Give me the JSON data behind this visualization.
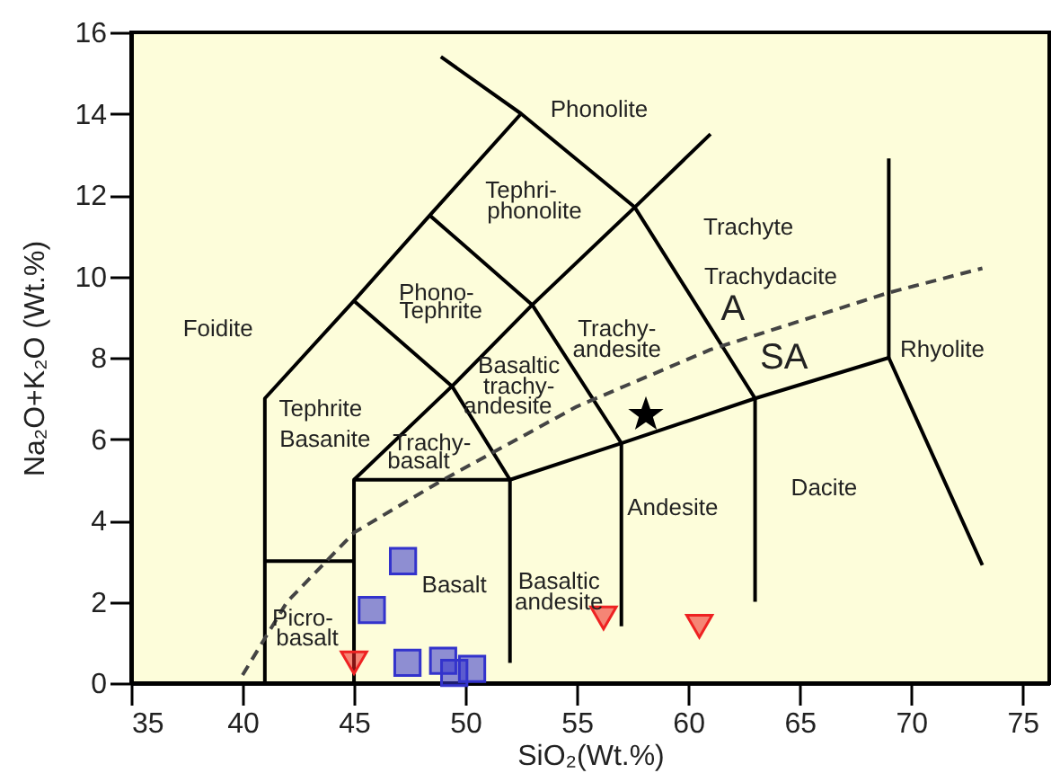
{
  "chart_data": {
    "type": "scatter",
    "xlabel": "SiO₂(Wt.%)",
    "ylabel": "Na₂O+K₂O (Wt.%)",
    "xlim": [
      35,
      76.2
    ],
    "ylim": [
      0,
      16
    ],
    "xticks": [
      35,
      40,
      45,
      50,
      55,
      60,
      65,
      70,
      75
    ],
    "yticks": [
      0,
      2,
      4,
      6,
      8,
      10,
      12,
      14,
      16
    ],
    "grid": false,
    "series": [
      {
        "type": "line",
        "color": "#000000",
        "line_style": "solid",
        "marker": "none",
        "x": [
          41,
          41,
          45,
          48.4,
          52.5
        ],
        "values": [
          0,
          7,
          9.4,
          11.5,
          14
        ]
      },
      {
        "type": "line",
        "color": "#000000",
        "line_style": "solid",
        "marker": "none",
        "x": [
          48.9,
          52.5,
          57.6,
          63,
          63
        ],
        "values": [
          15.4,
          14,
          11.7,
          7,
          2.0
        ]
      },
      {
        "type": "line",
        "color": "#000000",
        "line_style": "solid",
        "marker": "none",
        "x": [
          41,
          45
        ],
        "values": [
          3,
          3
        ]
      },
      {
        "type": "line",
        "color": "#000000",
        "line_style": "solid",
        "marker": "none",
        "x": [
          45,
          45,
          52,
          52
        ],
        "values": [
          0,
          5,
          5,
          0.5
        ]
      },
      {
        "type": "line",
        "color": "#000000",
        "line_style": "solid",
        "marker": "none",
        "x": [
          45,
          49.4,
          52,
          57,
          63,
          69,
          73.2
        ],
        "values": [
          9.4,
          7.3,
          5,
          5.9,
          7,
          8,
          2.9
        ]
      },
      {
        "type": "line",
        "color": "#000000",
        "line_style": "solid",
        "marker": "none",
        "x": [
          48.4,
          53,
          57,
          57
        ],
        "values": [
          11.5,
          9.3,
          5.9,
          1.4
        ]
      },
      {
        "type": "line",
        "color": "#000000",
        "line_style": "solid",
        "marker": "none",
        "x": [
          45,
          49.4,
          53,
          57.6,
          61
        ],
        "values": [
          5,
          7.3,
          9.3,
          11.7,
          13.5
        ]
      },
      {
        "type": "line",
        "color": "#000000",
        "line_style": "solid",
        "marker": "none",
        "x": [
          69,
          69
        ],
        "values": [
          8,
          12.9
        ]
      },
      {
        "type": "line",
        "color": "#444444",
        "line_style": "dashed",
        "marker": "none",
        "x": [
          40,
          42,
          45,
          49,
          55,
          61,
          65,
          69,
          73.2
        ],
        "values": [
          0.2,
          2.0,
          3.7,
          5.0,
          6.8,
          8.2,
          8.9,
          9.6,
          10.2
        ]
      },
      {
        "color": "#3333cc",
        "marker": "square",
        "x": [
          47.2,
          45.8,
          47.4,
          49.0,
          49.5,
          50.3
        ],
        "values": [
          3.0,
          1.8,
          0.5,
          0.55,
          0.25,
          0.35
        ]
      },
      {
        "color": "#ee2222",
        "marker": "triangle",
        "x": [
          45.0,
          56.2,
          60.5
        ],
        "values": [
          0.5,
          1.6,
          1.4
        ]
      },
      {
        "color": "#000000",
        "marker": "star",
        "x": [
          58.1
        ],
        "values": [
          6.6
        ]
      }
    ],
    "annotations": [
      "Phonolite",
      "Tephri-",
      "phonolite",
      "Foidite",
      "Phono-",
      "Tephrite",
      "Trachyte",
      "Trachydacite",
      "A",
      "SA",
      "Rhyolite",
      "Trachy-",
      "andesite",
      "Basaltic",
      "trachy-",
      "andesite",
      "Tephrite",
      "Basanite",
      "Trachy-",
      "basalt",
      "Dacite",
      "Andesite",
      "Basaltic",
      "andesite",
      "Basalt",
      "Picro-",
      "basalt"
    ]
  }
}
